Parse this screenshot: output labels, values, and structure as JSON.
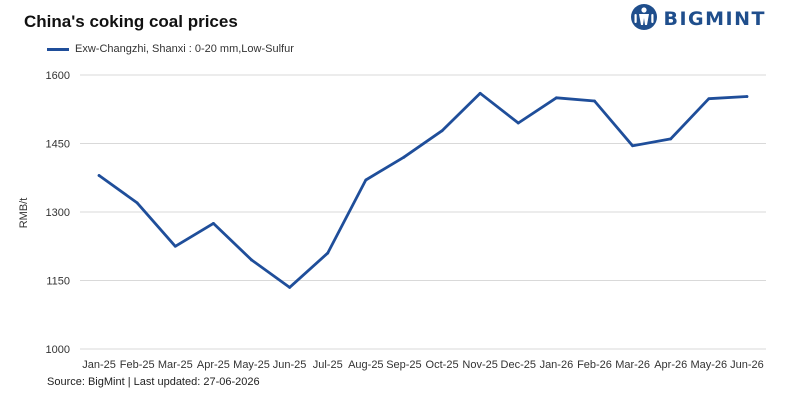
{
  "header": {
    "title": "China's coking coal prices"
  },
  "logo": {
    "text": "BIGMINT",
    "icon": "bigmint-logo-icon",
    "color": "#1f4e8c"
  },
  "footer": {
    "source": "Source: BigMint | Last updated: 27-06-2026"
  },
  "chart_data": {
    "type": "line",
    "title": "China's coking coal prices",
    "ylabel": "RMB/t",
    "xlabel": "",
    "ylim": [
      1000,
      1600
    ],
    "yticks": [
      1000,
      1150,
      1300,
      1450,
      1600
    ],
    "grid": true,
    "legend_position": "top-left",
    "categories": [
      "Jan-25",
      "Feb-25",
      "Mar-25",
      "Apr-25",
      "May-25",
      "Jun-25",
      "Jul-25",
      "Aug-25",
      "Sep-25",
      "Oct-25",
      "Nov-25",
      "Dec-25",
      "Jan-26",
      "Feb-26",
      "Mar-26",
      "Apr-26",
      "May-26",
      "Jun-26"
    ],
    "series": [
      {
        "name": "Exw-Changzhi, Shanxi : 0-20 mm,Low-Sulfur",
        "color": "#1f4e9a",
        "values": [
          1380,
          1320,
          1225,
          1275,
          1195,
          1135,
          1210,
          1370,
          1420,
          1478,
          1560,
          1495,
          1550,
          1543,
          1445,
          1460,
          1548,
          1553
        ]
      }
    ]
  }
}
